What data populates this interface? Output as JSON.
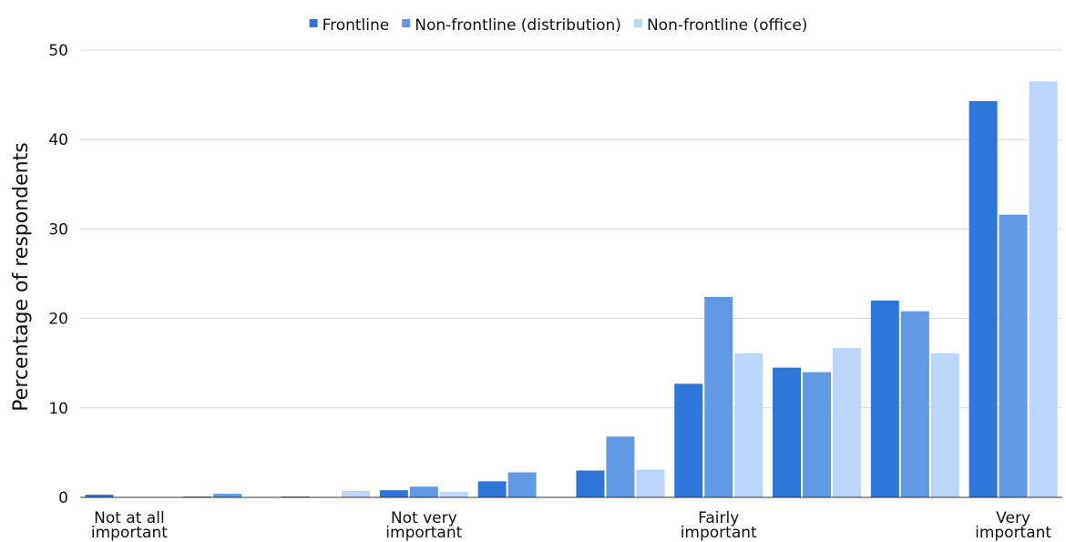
{
  "chart_data": {
    "type": "bar",
    "ylabel": "Percentage of respondents",
    "ylim": [
      0,
      50
    ],
    "yticks": [
      0,
      10,
      20,
      30,
      40,
      50
    ],
    "grid": true,
    "legend_position": "top",
    "groups": 10,
    "category_labels": [
      {
        "text": [
          "Not at all",
          "important"
        ],
        "group": 0
      },
      {
        "text": [
          "Not very",
          "important"
        ],
        "group": 3
      },
      {
        "text": [
          "Fairly",
          "important"
        ],
        "group": 6
      },
      {
        "text": [
          "Very",
          "important"
        ],
        "group": 9
      }
    ],
    "series": [
      {
        "name": "Frontline",
        "color": "#2f76d9",
        "values": [
          0.3,
          0.1,
          0.1,
          0.8,
          1.8,
          3.0,
          12.7,
          14.5,
          22.0,
          44.3
        ]
      },
      {
        "name": "Non-frontline (distribution)",
        "color": "#6199e4",
        "values": [
          0,
          0.4,
          0,
          1.2,
          2.8,
          6.8,
          22.4,
          14.0,
          20.8,
          31.6
        ]
      },
      {
        "name": "Non-frontline (office)",
        "color": "#bad6fb",
        "values": [
          0,
          0,
          0.7,
          0.6,
          0,
          3.1,
          16.1,
          16.7,
          16.1,
          46.5
        ]
      }
    ]
  }
}
